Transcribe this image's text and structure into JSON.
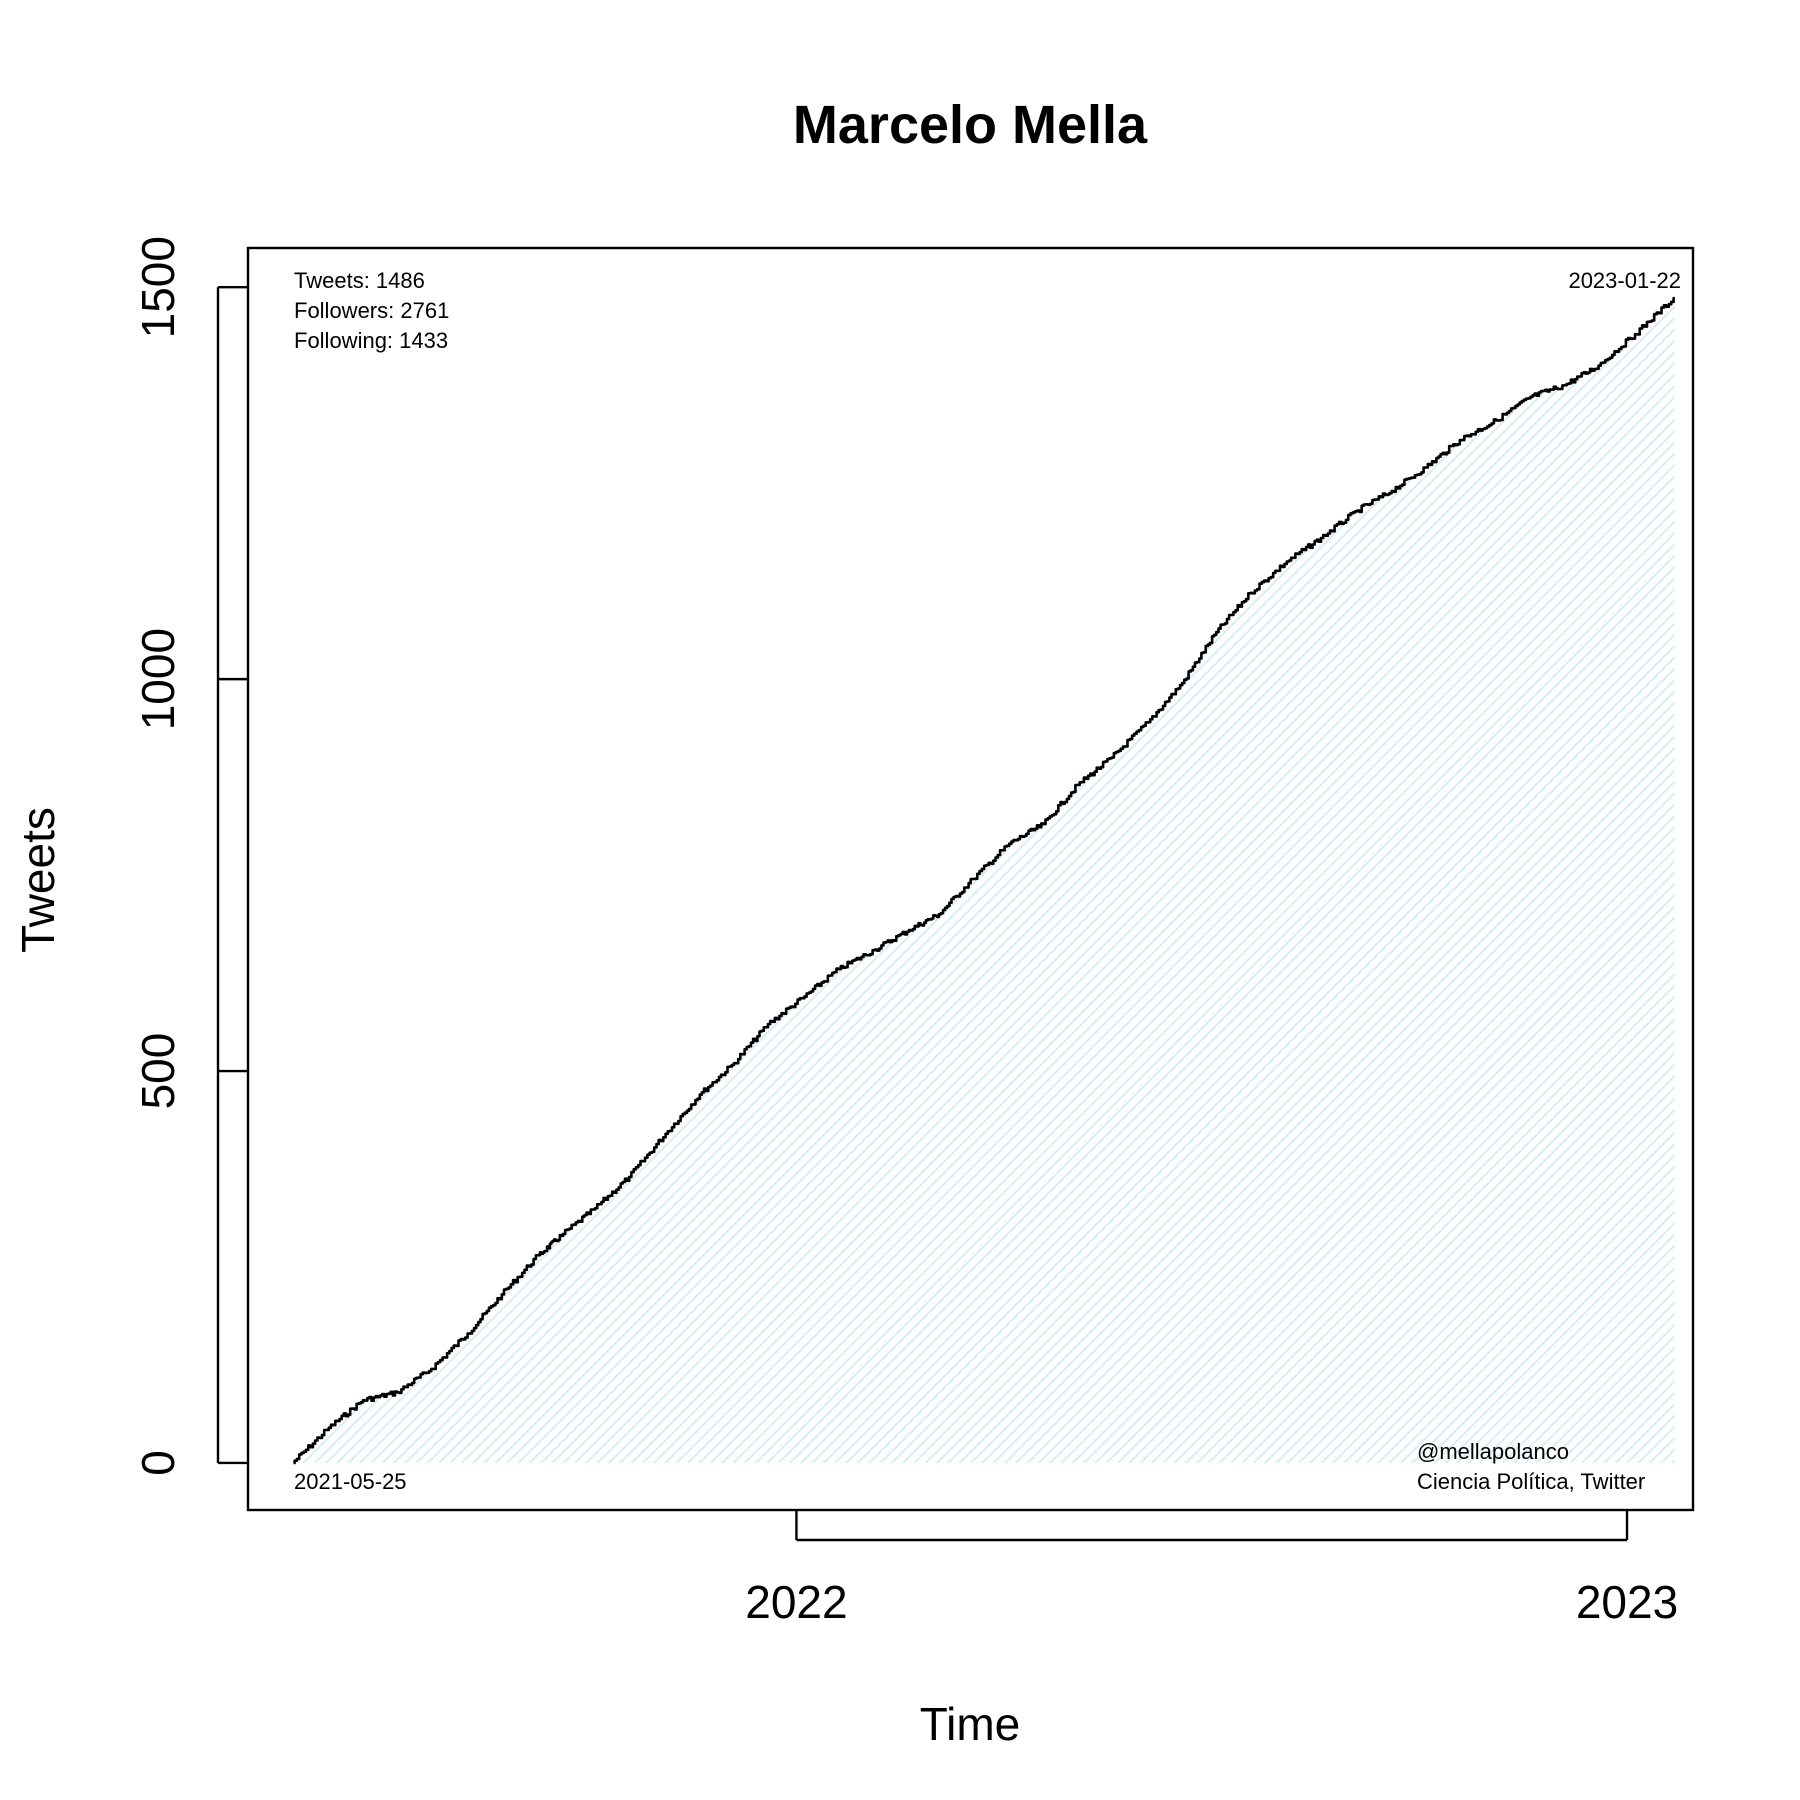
{
  "chart_data": {
    "type": "area",
    "title": "Marcelo Mella",
    "xlabel": "Time",
    "ylabel": "Tweets",
    "x_axis": "date",
    "xlim": [
      "2021-05-05",
      "2023-01-30"
    ],
    "ylim": [
      -60,
      1550
    ],
    "x_ticks": [
      {
        "value": "2022-01-01",
        "label": "2022"
      },
      {
        "value": "2023-01-01",
        "label": "2023"
      }
    ],
    "y_ticks": [
      {
        "value": 0,
        "label": "0"
      },
      {
        "value": 500,
        "label": "500"
      },
      {
        "value": 1000,
        "label": "1000"
      },
      {
        "value": 1500,
        "label": "1500"
      }
    ],
    "grid": false,
    "fill_color": "#d8eef2",
    "line_color": "#000000",
    "series": [
      {
        "x": [
          "2021-05-25",
          "2021-06-10",
          "2021-06-25",
          "2021-07-10",
          "2021-07-25",
          "2021-08-10",
          "2021-08-25",
          "2021-09-10",
          "2021-09-20",
          "2021-10-05",
          "2021-10-20",
          "2021-11-05",
          "2021-11-20",
          "2021-12-05",
          "2021-12-20",
          "2022-01-05",
          "2022-01-20",
          "2022-02-05",
          "2022-02-20",
          "2022-03-05",
          "2022-03-20",
          "2022-04-05",
          "2022-04-20",
          "2022-05-05",
          "2022-05-20",
          "2022-06-05",
          "2022-06-20",
          "2022-07-05",
          "2022-07-20",
          "2022-08-05",
          "2022-08-20",
          "2022-09-05",
          "2022-09-20",
          "2022-10-05",
          "2022-10-20",
          "2022-11-05",
          "2022-11-20",
          "2022-12-05",
          "2022-12-20",
          "2023-01-05",
          "2023-01-22"
        ],
        "y": [
          0,
          45,
          80,
          90,
          120,
          165,
          215,
          265,
          290,
          325,
          365,
          420,
          470,
          510,
          560,
          595,
          630,
          655,
          680,
          700,
          745,
          790,
          815,
          865,
          900,
          945,
          995,
          1060,
          1110,
          1150,
          1180,
          1215,
          1240,
          1270,
          1305,
          1330,
          1360,
          1375,
          1400,
          1440,
          1486
        ]
      }
    ],
    "annotations": {
      "stats": [
        "Tweets: 1486",
        "Followers: 2761",
        "Following: 1433"
      ],
      "start_date": "2021-05-25",
      "end_date": "2023-01-22",
      "credit": [
        "@mellapolanco",
        "Ciencia Política, Twitter"
      ]
    }
  }
}
